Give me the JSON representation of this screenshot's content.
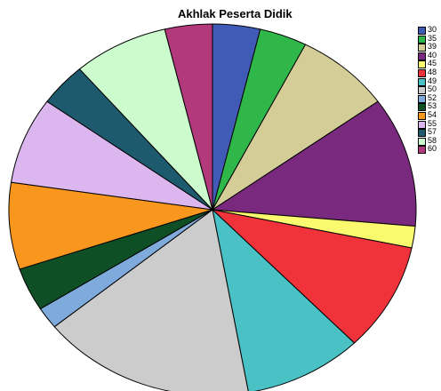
{
  "chart_data": {
    "type": "pie",
    "title": "Akhlak Peserta Didik",
    "legend_placement": "right",
    "categories": [
      "30",
      "35",
      "39",
      "40",
      "45",
      "48",
      "49",
      "50",
      "52",
      "53",
      "54",
      "55",
      "57",
      "58",
      "60"
    ],
    "values": [
      4,
      4,
      8,
      12,
      2,
      10,
      10,
      18,
      2,
      4,
      8,
      8,
      4,
      8,
      4
    ],
    "colors": [
      "#3f5bb5",
      "#2fb74a",
      "#d4cd98",
      "#7a2a7e",
      "#fbfa6e",
      "#f0333a",
      "#49c1c5",
      "#cccccc",
      "#7faadc",
      "#0e4f26",
      "#f8961d",
      "#dcb7ef",
      "#1e5a6d",
      "#ccfbce",
      "#b3397d"
    ]
  }
}
